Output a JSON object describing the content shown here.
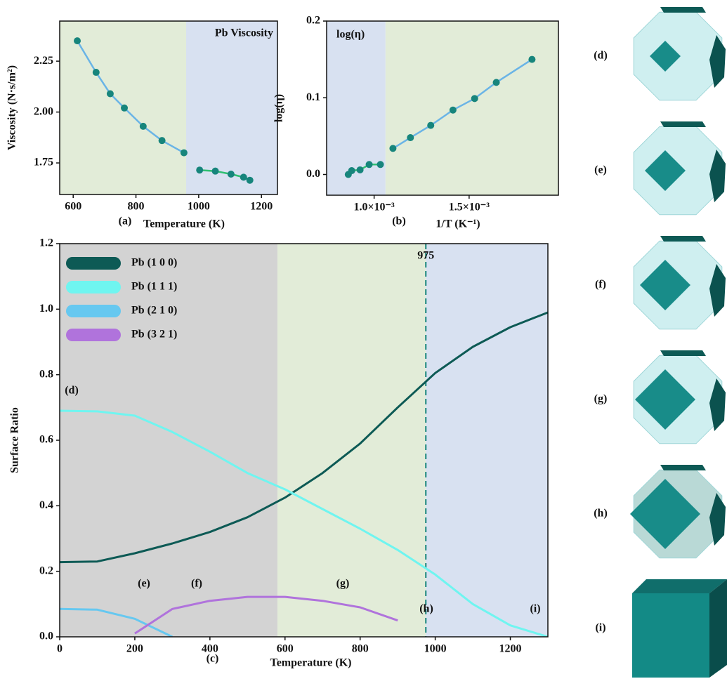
{
  "chart_data": [
    {
      "type": "line",
      "title": "Pb Viscosity",
      "xlabel": "Temperature (K)",
      "ylabel": "Viscosity (N·s/m²)",
      "panel": "(a)",
      "x": [
        613,
        673,
        718,
        763,
        823,
        883,
        953,
        1003,
        1053,
        1103,
        1143,
        1163
      ],
      "series": [
        {
          "color": "#6ab4e6",
          "values": [
            2.35,
            2.195,
            2.09,
            2.02,
            1.93,
            1.86,
            1.8,
            null,
            null,
            null,
            null,
            null
          ]
        },
        {
          "color": "#2fbf71",
          "values": [
            null,
            null,
            null,
            null,
            null,
            null,
            null,
            1.715,
            1.71,
            1.695,
            1.68,
            1.665
          ]
        }
      ],
      "marker_color": "#17857c",
      "regions": [
        {
          "from": 557,
          "to": 960,
          "color": "#e2ecd8"
        },
        {
          "from": 960,
          "to": 1251,
          "color": "#d8e1f1"
        }
      ],
      "xlim": [
        557,
        1251
      ],
      "xticks": [
        600,
        800,
        1000,
        1200
      ],
      "ylim": [
        1.595,
        2.447
      ],
      "yticks": [
        {
          "value": 1.75,
          "label": "1.75"
        },
        {
          "value": 2.0,
          "label": "2.00"
        },
        {
          "value": 2.25,
          "label": "2.25"
        }
      ]
    },
    {
      "type": "line",
      "title": "log(η)",
      "xlabel": "1/T (K⁻¹)",
      "ylabel": "log(η)",
      "panel": "(b)",
      "x": [
        0.000864,
        0.000882,
        0.000926,
        0.000974,
        0.001033,
        0.001099,
        0.001191,
        0.001298,
        0.001415,
        0.001529,
        0.001643,
        0.001831
      ],
      "series": [
        {
          "color": "#2fbf71",
          "values": [
            0.0,
            0.005,
            0.006,
            0.013,
            0.013,
            null,
            null,
            null,
            null,
            null,
            null,
            null
          ]
        },
        {
          "color": "#6ab4e6",
          "values": [
            null,
            null,
            null,
            null,
            null,
            0.034,
            0.048,
            0.064,
            0.084,
            0.099,
            0.12,
            0.15
          ]
        }
      ],
      "marker_color": "#17857c",
      "regions": [
        {
          "from": 0.00075,
          "to": 0.00106,
          "color": "#d8e1f1"
        },
        {
          "from": 0.00106,
          "to": 0.00197,
          "color": "#e2ecd8"
        }
      ],
      "xlim": [
        0.00075,
        0.00197
      ],
      "xticks": [
        {
          "value": 0.001,
          "label": "1.0×10⁻³"
        },
        {
          "value": 0.0015,
          "label": "1.5×10⁻³"
        }
      ],
      "ylim": [
        -0.027,
        0.2
      ],
      "yticks": [
        {
          "value": 0.0,
          "label": "0.0"
        },
        {
          "value": 0.1,
          "label": "0.1"
        },
        {
          "value": 0.2,
          "label": "0.2"
        }
      ]
    },
    {
      "type": "line",
      "xlabel": "Temperature (K)",
      "ylabel": "Surface Ratio",
      "panel": "(c)",
      "x": [
        0,
        100,
        200,
        300,
        400,
        500,
        600,
        700,
        800,
        900,
        1000,
        1100,
        1200,
        1300
      ],
      "series": [
        {
          "name": "Pb (1 0 0)",
          "color": "#0d5a55",
          "values": [
            0.228,
            0.23,
            0.255,
            0.285,
            0.32,
            0.365,
            0.425,
            0.5,
            0.59,
            0.7,
            0.805,
            0.885,
            0.945,
            0.99
          ]
        },
        {
          "name": "Pb (1 1 1)",
          "color": "#6ff5f0",
          "values": [
            0.69,
            0.688,
            0.675,
            0.625,
            0.565,
            0.5,
            0.45,
            0.39,
            0.33,
            0.265,
            0.19,
            0.1,
            0.035,
            0.0
          ]
        },
        {
          "name": "Pb (2 1 0)",
          "color": "#66c8f0",
          "values": [
            0.085,
            0.083,
            0.055,
            0.0,
            null,
            null,
            null,
            null,
            null,
            null,
            null,
            null,
            null,
            null
          ]
        },
        {
          "name": "Pb (3 2 1)",
          "color": "#b073dc",
          "values": [
            null,
            null,
            0.01,
            0.085,
            0.11,
            0.122,
            0.122,
            0.11,
            0.09,
            0.05,
            null,
            null,
            null,
            null
          ]
        }
      ],
      "regions": [
        {
          "from": 0,
          "to": 580,
          "color": "#d3d3d3"
        },
        {
          "from": 580,
          "to": 975,
          "color": "#e2ecd8"
        },
        {
          "from": 975,
          "to": 1300,
          "color": "#d8e1f1"
        }
      ],
      "vline": 975,
      "annotations": [
        "(d)",
        "(e)",
        "(f)",
        "(g)",
        "(h)",
        "(i)"
      ],
      "xlim": [
        0,
        1300
      ],
      "xticks": [
        0,
        200,
        400,
        600,
        800,
        1000,
        1200
      ],
      "ylim": [
        0,
        1.2
      ],
      "yticks": [
        {
          "value": 0,
          "label": "0.0"
        },
        {
          "value": 0.2,
          "label": "0.2"
        },
        {
          "value": 0.4,
          "label": "0.4"
        },
        {
          "value": 0.6,
          "label": "0.6"
        },
        {
          "value": 0.8,
          "label": "0.8"
        },
        {
          "value": 1.0,
          "label": "1.0"
        },
        {
          "value": 1.2,
          "label": "1.2"
        }
      ],
      "legend": "upper left"
    }
  ],
  "polyhedra": [
    "(d)",
    "(e)",
    "(f)",
    "(g)",
    "(h)",
    "(i)"
  ]
}
